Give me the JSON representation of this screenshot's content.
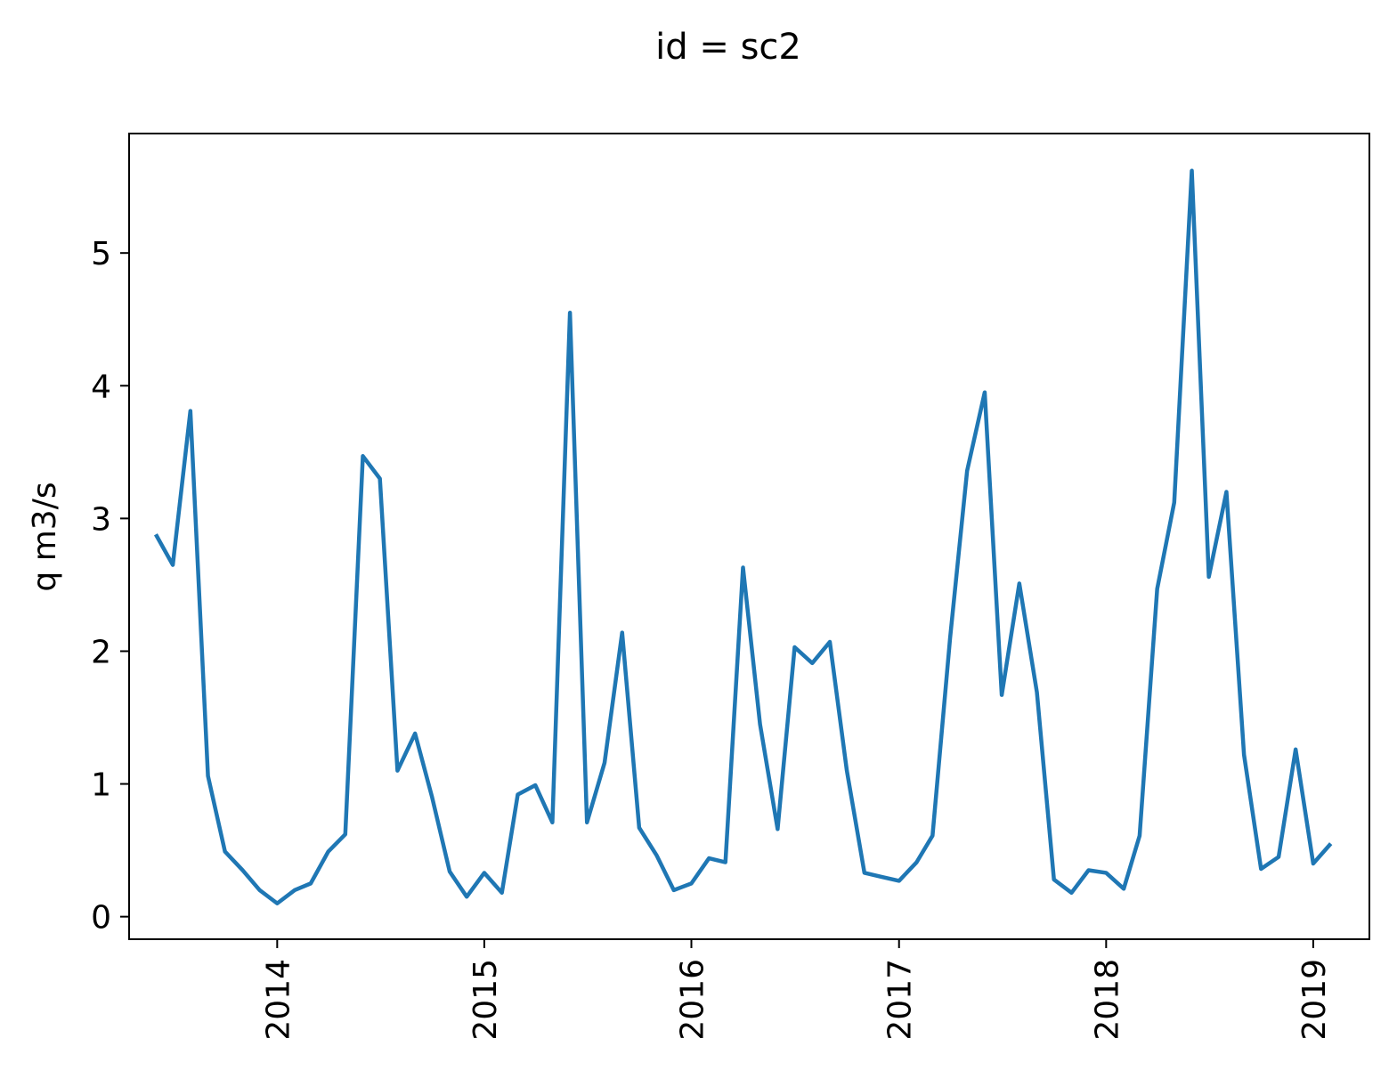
{
  "chart_data": {
    "type": "line",
    "title": "id = sc2",
    "xlabel": "",
    "ylabel": "q m3/s",
    "x_axis": "date",
    "xlim": [
      "2013-04-15",
      "2019-04-10"
    ],
    "ylim": [
      -0.17,
      5.9
    ],
    "yticks": [
      0,
      1,
      2,
      3,
      4,
      5
    ],
    "xticks": [
      "2014-01-01",
      "2015-01-01",
      "2016-01-01",
      "2017-01-01",
      "2018-01-01",
      "2019-01-01"
    ],
    "xtick_labels": [
      "2014",
      "2015",
      "2016",
      "2017",
      "2018",
      "2019"
    ],
    "grid": false,
    "legend": "none",
    "line_color": "#1f77b4",
    "series": [
      {
        "x": [
          "2013-06-01",
          "2013-07-01",
          "2013-08-01",
          "2013-09-01",
          "2013-10-01",
          "2013-11-01",
          "2013-12-01",
          "2014-01-01",
          "2014-02-01",
          "2014-03-01",
          "2014-04-01",
          "2014-05-01",
          "2014-06-01",
          "2014-07-01",
          "2014-08-01",
          "2014-09-01",
          "2014-10-01",
          "2014-11-01",
          "2014-12-01",
          "2015-01-01",
          "2015-02-01",
          "2015-03-01",
          "2015-04-01",
          "2015-05-01",
          "2015-06-01",
          "2015-07-01",
          "2015-08-01",
          "2015-09-01",
          "2015-10-01",
          "2015-11-01",
          "2015-12-01",
          "2016-01-01",
          "2016-02-01",
          "2016-03-01",
          "2016-04-01",
          "2016-05-01",
          "2016-06-01",
          "2016-07-01",
          "2016-08-01",
          "2016-09-01",
          "2016-10-01",
          "2016-11-01",
          "2016-12-01",
          "2017-01-01",
          "2017-02-01",
          "2017-03-01",
          "2017-04-01",
          "2017-05-01",
          "2017-06-01",
          "2017-07-01",
          "2017-08-01",
          "2017-09-01",
          "2017-10-01",
          "2017-11-01",
          "2017-12-01",
          "2018-01-01",
          "2018-02-01",
          "2018-03-01",
          "2018-04-01",
          "2018-05-01",
          "2018-06-01",
          "2018-07-01",
          "2018-08-01",
          "2018-09-01",
          "2018-10-01",
          "2018-11-01",
          "2018-12-01",
          "2019-01-01",
          "2019-02-01"
        ],
        "y": [
          2.88,
          2.65,
          3.81,
          1.06,
          0.49,
          0.35,
          0.2,
          0.1,
          0.2,
          0.25,
          0.49,
          0.62,
          3.47,
          3.3,
          1.1,
          1.38,
          0.9,
          0.34,
          0.15,
          0.33,
          0.18,
          0.92,
          0.99,
          0.71,
          4.55,
          0.71,
          1.16,
          2.14,
          0.67,
          0.46,
          0.2,
          0.25,
          0.44,
          0.41,
          2.63,
          1.45,
          0.66,
          2.03,
          1.91,
          2.07,
          1.1,
          0.33,
          0.3,
          0.27,
          0.41,
          0.61,
          2.1,
          3.36,
          3.95,
          1.67,
          2.51,
          1.69,
          0.28,
          0.18,
          0.35,
          0.33,
          0.21,
          0.61,
          2.47,
          3.12,
          5.62,
          2.56,
          3.2,
          1.22,
          0.36,
          0.45,
          1.26,
          0.4,
          0.55
        ]
      }
    ]
  }
}
